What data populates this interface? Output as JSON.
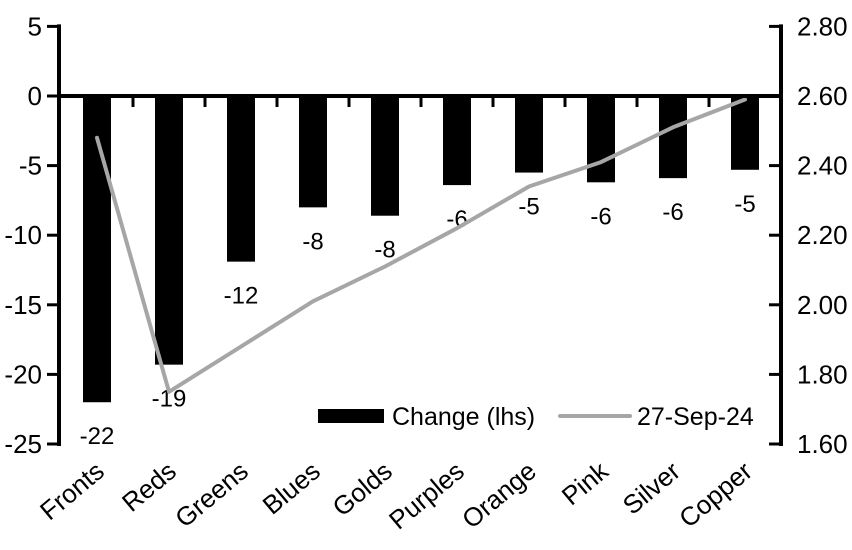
{
  "chart_data": {
    "type": "bar",
    "subtype": "bar-and-line-dual-axis",
    "title": "",
    "categories": [
      "Fronts",
      "Reds",
      "Greens",
      "Blues",
      "Golds",
      "Purples",
      "Orange",
      "Pink",
      "Silver",
      "Copper"
    ],
    "series": [
      {
        "name": "Change (lhs)",
        "type": "bar",
        "axis": "left",
        "color": "#000000",
        "values": [
          -22,
          -19,
          -12,
          -8,
          -8,
          -6,
          -5,
          -6,
          -6,
          -5
        ],
        "data_labels": [
          "-22",
          "-19",
          "-12",
          "-8",
          "-8",
          "-6",
          "-5",
          "-6",
          "-6",
          "-5"
        ],
        "plotted_estimate": [
          -22.0,
          -19.3,
          -11.9,
          -8.0,
          -8.6,
          -6.4,
          -5.5,
          -6.2,
          -5.9,
          -5.3
        ]
      },
      {
        "name": "27-Sep-24",
        "type": "line",
        "axis": "right",
        "color": "#a6a6a6",
        "values": [
          2.48,
          1.75,
          1.88,
          2.01,
          2.11,
          2.22,
          2.34,
          2.41,
          2.51,
          2.59
        ]
      }
    ],
    "left_axis": {
      "tick_labels": [
        "5",
        "0",
        "-5",
        "-10",
        "-15",
        "-20",
        "-25"
      ],
      "max": 5,
      "min": -25,
      "tick_step": 5
    },
    "right_axis": {
      "tick_labels": [
        "2.80",
        "2.60",
        "2.40",
        "2.20",
        "2.00",
        "1.80",
        "1.60"
      ],
      "max": 2.8,
      "min": 1.6,
      "tick_step": 0.2
    },
    "legend": {
      "position": "bottom-inside",
      "entries": [
        {
          "label": "Change (lhs)",
          "swatch": "bar",
          "color": "#000000"
        },
        {
          "label": "27-Sep-24",
          "swatch": "line",
          "color": "#a6a6a6"
        }
      ]
    },
    "grid": "off",
    "colors": {
      "bar": "#000000",
      "line": "#a6a6a6",
      "axis": "#000000",
      "text": "#000000",
      "background": "#ffffff"
    }
  }
}
